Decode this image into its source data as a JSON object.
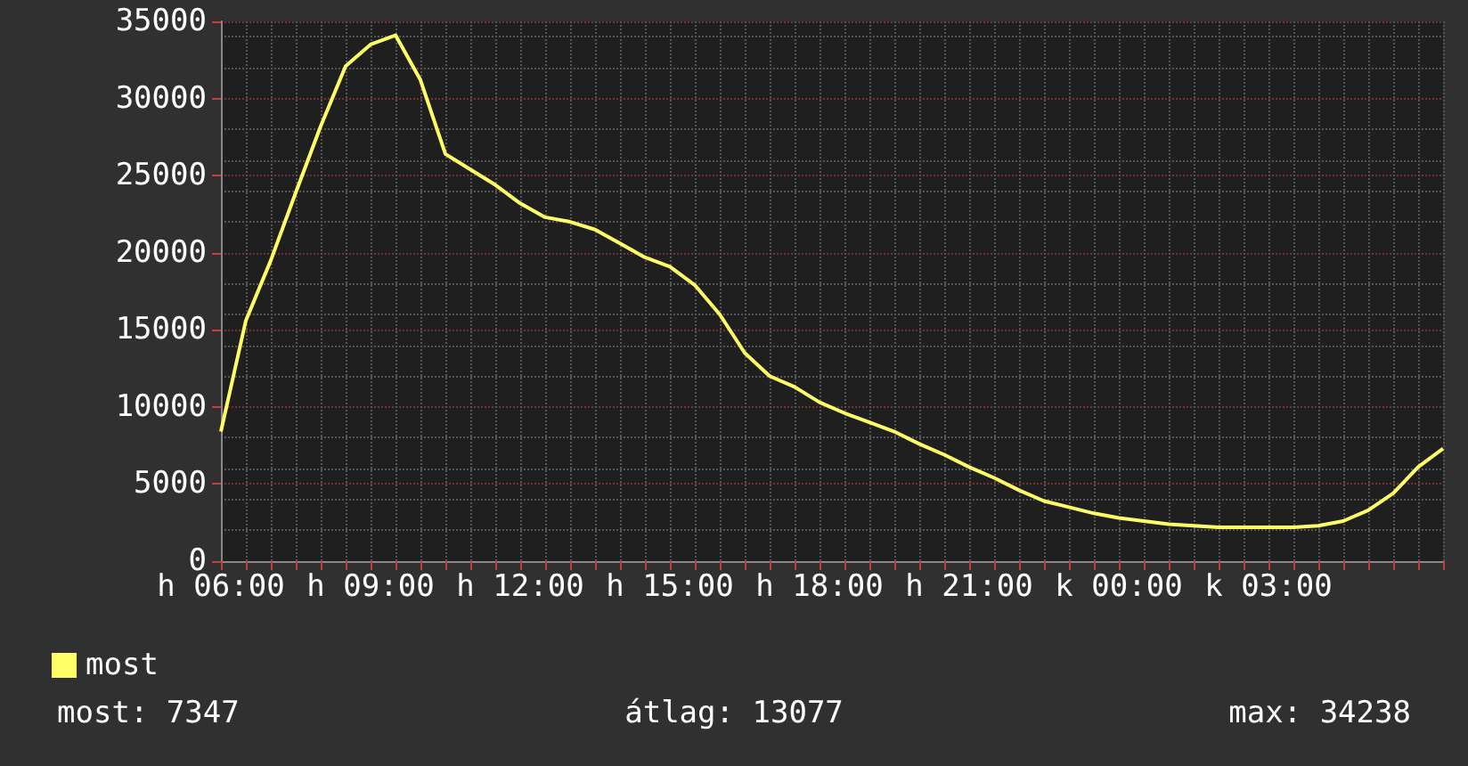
{
  "chart_data": {
    "type": "line",
    "categories": [
      "h 06:00",
      null,
      null,
      null,
      null,
      null,
      "h 09:00",
      null,
      null,
      null,
      null,
      null,
      "h 12:00",
      null,
      null,
      null,
      null,
      null,
      "h 15:00",
      null,
      null,
      null,
      null,
      null,
      "h 18:00",
      null,
      null,
      null,
      null,
      null,
      "h 21:00",
      null,
      null,
      null,
      null,
      null,
      "k 00:00",
      null,
      null,
      null,
      null,
      null,
      "k 03:00",
      null,
      null,
      null,
      null,
      null,
      null,
      null
    ],
    "series": [
      {
        "name": "most",
        "color": "#ffff66",
        "values": [
          8400,
          15600,
          19500,
          23900,
          28200,
          32100,
          33500,
          34100,
          31200,
          26400,
          25400,
          24400,
          23200,
          22300,
          22000,
          21500,
          20600,
          19700,
          19100,
          17900,
          16000,
          13500,
          12000,
          11300,
          10300,
          9600,
          9000,
          8400,
          7600,
          6900,
          6100,
          5400,
          4600,
          3900,
          3500,
          3100,
          2800,
          2600,
          2400,
          2300,
          2200,
          2200,
          2200,
          2200,
          2300,
          2600,
          3300,
          4400,
          6100,
          7300
        ]
      }
    ],
    "ylim": [
      0,
      35000
    ],
    "yticks": [
      0,
      5000,
      10000,
      15000,
      20000,
      25000,
      30000,
      35000
    ],
    "grid": true,
    "legend": "bottom left",
    "marker": "none",
    "line_style": "solid",
    "annotations": [
      "most: 7347",
      "átlag: 13077",
      "max: 34238"
    ]
  }
}
